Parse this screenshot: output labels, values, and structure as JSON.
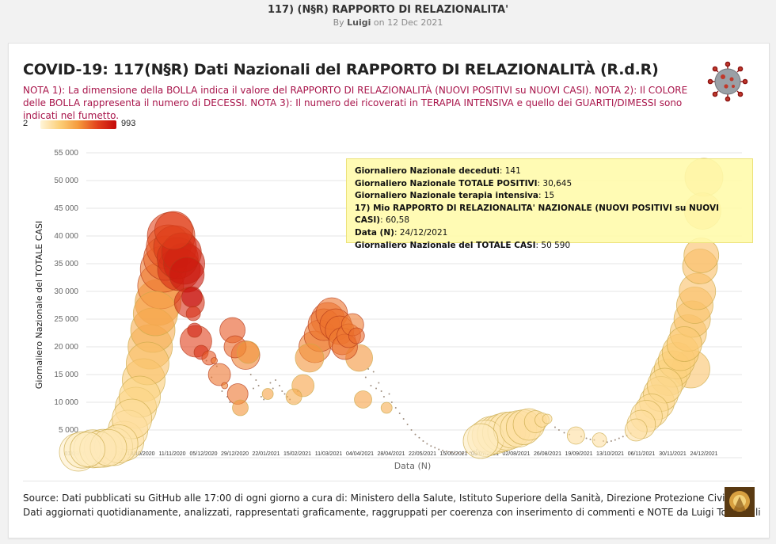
{
  "header": {
    "title": "117) (N§R) RAPPORTO DI RELAZIONALITA'",
    "by_prefix": "By",
    "author": "Luigi",
    "date_text": "on 12 Dec 2021"
  },
  "card": {
    "title": "COVID-19: 117(N§R) Dati Nazionali del RAPPORTO DI RELAZIONALITÀ (R.d.R)",
    "notes": "NOTA 1): La dimensione della BOLLA indica il valore del RAPPORTO DI RELAZIONALITÀ (NUOVI POSITIVI su NUOVI CASI). NOTA 2): Il COLORE delle BOLLA rappresenta il numero di DECESSI. NOTA 3): Il numero dei ricoverati in TERAPIA INTENSIVA e quello dei GUARITI/DIMESSI sono indicati nel fumetto.",
    "source_line1": "Source: Dati pubblicati su GitHub alle 17:00 di ogni giorno a cura di: Ministero della Salute, Istituto Superiore della Sanità, Direzione Protezione Civile",
    "source_line2": "Dati aggiornati quotidianamente, analizzati, rappresentati graficamente, raggruppati per coerenza con inserimento di commenti e NOTE da Luigi Tomaselli"
  },
  "colors": {
    "low": "#fff5d9",
    "high": "#c40a0a",
    "note_text": "#a8144a",
    "tooltip_bg": "#fffaaa"
  },
  "legend": {
    "min_label": "2",
    "max_label": "993"
  },
  "tooltip": {
    "rows": [
      {
        "label": "Giornaliero Nazionale deceduti",
        "value": ": 141"
      },
      {
        "label": "Giornaliero Nazionale TOTALE POSITIVI",
        "value": ": 30,645"
      },
      {
        "label": "Giornaliero Nazionale terapia intensiva",
        "value": ": 15"
      },
      {
        "label": "17) Mio RAPPORTO DI RELAZIONALITA' NAZIONALE (NUOVI POSITIVI su NUOVI CASI)",
        "value": ": 60,58"
      },
      {
        "label": "Data (N)",
        "value": ": 24/12/2021"
      },
      {
        "label": "Giornaliero Nazionale del TOTALE CASI",
        "value": ": 50 590"
      }
    ]
  },
  "chart_data": {
    "type": "scatter",
    "xlabel": "Data (N)",
    "ylabel": "Giornaliero Nazionale del TOTALE CASI",
    "ylim": [
      0,
      55000
    ],
    "yticks": [
      5000,
      10000,
      15000,
      20000,
      25000,
      30000,
      35000,
      40000,
      45000,
      50000,
      55000
    ],
    "ytick_labels": [
      "5 000",
      "10 000",
      "15 000",
      "20 000",
      "25 000",
      "30 000",
      "35 000",
      "40 000",
      "45 000",
      "50 000",
      "55 000"
    ],
    "xtick_labels": [
      "01/09/2020",
      "24/09/2020",
      "18/10/2020",
      "11/11/2020",
      "05/12/2020",
      "29/12/2020",
      "22/01/2021",
      "15/02/2021",
      "11/03/2021",
      "04/04/2021",
      "28/04/2021",
      "22/05/2021",
      "15/06/2021",
      "09/07/2021",
      "02/08/2021",
      "26/08/2021",
      "19/09/2021",
      "13/10/2021",
      "06/11/2021",
      "30/11/2021",
      "24/12/2021"
    ],
    "size_encodes": "RAPPORTO DI RELAZIONALITA' (NUOVI POSITIVI su NUOVI CASI)",
    "color_encodes": "DECESSI",
    "color_range": [
      2,
      993
    ],
    "points": [
      {
        "x": "2020-09-01",
        "y": 1000,
        "r": 24,
        "c": 5
      },
      {
        "x": "2020-09-04",
        "y": 1400,
        "r": 23,
        "c": 8
      },
      {
        "x": "2020-09-08",
        "y": 1500,
        "r": 22,
        "c": 10
      },
      {
        "x": "2020-09-12",
        "y": 1600,
        "r": 24,
        "c": 12
      },
      {
        "x": "2020-09-16",
        "y": 1500,
        "r": 23,
        "c": 14
      },
      {
        "x": "2020-09-20",
        "y": 1700,
        "r": 24,
        "c": 16
      },
      {
        "x": "2020-09-24",
        "y": 1800,
        "r": 23,
        "c": 18
      },
      {
        "x": "2020-09-28",
        "y": 2000,
        "r": 24,
        "c": 20
      },
      {
        "x": "2020-10-02",
        "y": 2500,
        "r": 24,
        "c": 22
      },
      {
        "x": "2020-10-06",
        "y": 3000,
        "r": 25,
        "c": 25
      },
      {
        "x": "2020-10-09",
        "y": 5000,
        "r": 25,
        "c": 30
      },
      {
        "x": "2020-10-12",
        "y": 7000,
        "r": 25,
        "c": 40
      },
      {
        "x": "2020-10-15",
        "y": 9000,
        "r": 26,
        "c": 50
      },
      {
        "x": "2020-10-18",
        "y": 11000,
        "r": 26,
        "c": 70
      },
      {
        "x": "2020-10-21",
        "y": 14000,
        "r": 27,
        "c": 90
      },
      {
        "x": "2020-10-24",
        "y": 17000,
        "r": 27,
        "c": 130
      },
      {
        "x": "2020-10-26",
        "y": 20000,
        "r": 28,
        "c": 160
      },
      {
        "x": "2020-10-28",
        "y": 23000,
        "r": 28,
        "c": 200
      },
      {
        "x": "2020-10-30",
        "y": 26000,
        "r": 28,
        "c": 240
      },
      {
        "x": "2020-11-01",
        "y": 28000,
        "r": 29,
        "c": 280
      },
      {
        "x": "2020-11-03",
        "y": 31000,
        "r": 29,
        "c": 330
      },
      {
        "x": "2020-11-05",
        "y": 34000,
        "r": 29,
        "c": 400
      },
      {
        "x": "2020-11-07",
        "y": 36000,
        "r": 28,
        "c": 450
      },
      {
        "x": "2020-11-09",
        "y": 38000,
        "r": 28,
        "c": 520
      },
      {
        "x": "2020-11-11",
        "y": 40000,
        "r": 30,
        "c": 580
      },
      {
        "x": "2020-11-13",
        "y": 41000,
        "r": 24,
        "c": 600
      },
      {
        "x": "2020-11-14",
        "y": 38000,
        "r": 27,
        "c": 640
      },
      {
        "x": "2020-11-16",
        "y": 36000,
        "r": 26,
        "c": 700
      },
      {
        "x": "2020-11-17",
        "y": 34000,
        "r": 27,
        "c": 730
      },
      {
        "x": "2020-11-19",
        "y": 37000,
        "r": 25,
        "c": 780
      },
      {
        "x": "2020-11-21",
        "y": 35000,
        "r": 26,
        "c": 830
      },
      {
        "x": "2020-11-23",
        "y": 33000,
        "r": 22,
        "c": 900
      },
      {
        "x": "2020-11-25",
        "y": 28000,
        "r": 19,
        "c": 720
      },
      {
        "x": "2020-11-27",
        "y": 29000,
        "r": 13,
        "c": 993
      },
      {
        "x": "2020-11-28",
        "y": 26000,
        "r": 9,
        "c": 700
      },
      {
        "x": "2020-11-29",
        "y": 23000,
        "r": 9,
        "c": 800
      },
      {
        "x": "2020-11-30",
        "y": 21000,
        "r": 20,
        "c": 600
      },
      {
        "x": "2020-12-04",
        "y": 19000,
        "r": 9,
        "c": 700
      },
      {
        "x": "2020-12-10",
        "y": 18000,
        "r": 9,
        "c": 500
      },
      {
        "x": "2020-12-14",
        "y": 17500,
        "r": 4,
        "c": 400
      },
      {
        "x": "2020-12-18",
        "y": 15000,
        "r": 14,
        "c": 400
      },
      {
        "x": "2020-12-22",
        "y": 13000,
        "r": 4,
        "c": 350
      },
      {
        "x": "2020-12-28",
        "y": 23000,
        "r": 16,
        "c": 500
      },
      {
        "x": "2020-12-30",
        "y": 20000,
        "r": 14,
        "c": 450
      },
      {
        "x": "2021-01-01",
        "y": 11500,
        "r": 13,
        "c": 400
      },
      {
        "x": "2021-01-03",
        "y": 9000,
        "r": 10,
        "c": 300
      },
      {
        "x": "2021-01-07",
        "y": 18500,
        "r": 18,
        "c": 350
      },
      {
        "x": "2021-01-09",
        "y": 19000,
        "r": 14,
        "c": 300
      },
      {
        "x": "2021-01-24",
        "y": 11500,
        "r": 7,
        "c": 250
      },
      {
        "x": "2021-02-13",
        "y": 11000,
        "r": 10,
        "c": 200
      },
      {
        "x": "2021-02-20",
        "y": 13000,
        "r": 14,
        "c": 250
      },
      {
        "x": "2021-02-25",
        "y": 18000,
        "r": 18,
        "c": 300
      },
      {
        "x": "2021-03-01",
        "y": 20000,
        "r": 20,
        "c": 350
      },
      {
        "x": "2021-03-05",
        "y": 22000,
        "r": 20,
        "c": 380
      },
      {
        "x": "2021-03-08",
        "y": 24000,
        "r": 20,
        "c": 400
      },
      {
        "x": "2021-03-11",
        "y": 25000,
        "r": 21,
        "c": 420
      },
      {
        "x": "2021-03-14",
        "y": 26000,
        "r": 20,
        "c": 400
      },
      {
        "x": "2021-03-17",
        "y": 24000,
        "r": 20,
        "c": 420
      },
      {
        "x": "2021-03-20",
        "y": 23000,
        "r": 18,
        "c": 400
      },
      {
        "x": "2021-03-22",
        "y": 21000,
        "r": 17,
        "c": 380
      },
      {
        "x": "2021-03-24",
        "y": 20000,
        "r": 16,
        "c": 420
      },
      {
        "x": "2021-03-27",
        "y": 22000,
        "r": 15,
        "c": 400
      },
      {
        "x": "2021-03-30",
        "y": 24000,
        "r": 14,
        "c": 380
      },
      {
        "x": "2021-04-02",
        "y": 22000,
        "r": 10,
        "c": 450
      },
      {
        "x": "2021-04-04",
        "y": 18000,
        "r": 17,
        "c": 300
      },
      {
        "x": "2021-04-07",
        "y": 10500,
        "r": 11,
        "c": 250
      },
      {
        "x": "2021-04-25",
        "y": 9000,
        "r": 7,
        "c": 200
      },
      {
        "x": "2021-07-06",
        "y": 3000,
        "r": 22,
        "c": 10
      },
      {
        "x": "2021-07-10",
        "y": 3500,
        "r": 23,
        "c": 12
      },
      {
        "x": "2021-07-14",
        "y": 4000,
        "r": 24,
        "c": 14
      },
      {
        "x": "2021-07-18",
        "y": 4200,
        "r": 24,
        "c": 16
      },
      {
        "x": "2021-07-22",
        "y": 4500,
        "r": 24,
        "c": 18
      },
      {
        "x": "2021-07-26",
        "y": 4800,
        "r": 24,
        "c": 20
      },
      {
        "x": "2021-07-30",
        "y": 5000,
        "r": 23,
        "c": 22
      },
      {
        "x": "2021-08-04",
        "y": 5200,
        "r": 23,
        "c": 25
      },
      {
        "x": "2021-08-08",
        "y": 5500,
        "r": 22,
        "c": 30
      },
      {
        "x": "2021-08-12",
        "y": 6000,
        "r": 20,
        "c": 35
      },
      {
        "x": "2021-08-17",
        "y": 6500,
        "r": 14,
        "c": 40
      },
      {
        "x": "2021-08-22",
        "y": 6800,
        "r": 9,
        "c": 40
      },
      {
        "x": "2021-08-26",
        "y": 7000,
        "r": 6,
        "c": 40
      },
      {
        "x": "2021-09-17",
        "y": 4000,
        "r": 11,
        "c": 35
      },
      {
        "x": "2021-10-05",
        "y": 3200,
        "r": 9,
        "c": 30
      },
      {
        "x": "2021-11-02",
        "y": 5000,
        "r": 14,
        "c": 30
      },
      {
        "x": "2021-11-06",
        "y": 6000,
        "r": 18,
        "c": 35
      },
      {
        "x": "2021-11-10",
        "y": 7500,
        "r": 20,
        "c": 40
      },
      {
        "x": "2021-11-14",
        "y": 8500,
        "r": 21,
        "c": 45
      },
      {
        "x": "2021-11-18",
        "y": 10000,
        "r": 22,
        "c": 50
      },
      {
        "x": "2021-11-21",
        "y": 11500,
        "r": 22,
        "c": 55
      },
      {
        "x": "2021-11-24",
        "y": 13000,
        "r": 22,
        "c": 60
      },
      {
        "x": "2021-11-27",
        "y": 14500,
        "r": 23,
        "c": 65
      },
      {
        "x": "2021-11-30",
        "y": 16000,
        "r": 23,
        "c": 70
      },
      {
        "x": "2021-12-03",
        "y": 17500,
        "r": 23,
        "c": 80
      },
      {
        "x": "2021-12-06",
        "y": 19000,
        "r": 23,
        "c": 90
      },
      {
        "x": "2021-12-09",
        "y": 20500,
        "r": 22,
        "c": 100
      },
      {
        "x": "2021-12-12",
        "y": 22500,
        "r": 23,
        "c": 110
      },
      {
        "x": "2021-12-15",
        "y": 25000,
        "r": 23,
        "c": 120
      },
      {
        "x": "2021-12-17",
        "y": 27500,
        "r": 23,
        "c": 125
      },
      {
        "x": "2021-12-19",
        "y": 30000,
        "r": 23,
        "c": 130
      },
      {
        "x": "2021-12-21",
        "y": 34500,
        "r": 22,
        "c": 135
      },
      {
        "x": "2021-12-22",
        "y": 36500,
        "r": 22,
        "c": 138
      },
      {
        "x": "2021-12-23",
        "y": 44500,
        "r": 23,
        "c": 140
      },
      {
        "x": "2021-12-24",
        "y": 50590,
        "r": 24,
        "c": 141
      },
      {
        "x": "2021-12-14",
        "y": 16000,
        "r": 24,
        "c": 120
      }
    ],
    "small_dots": [
      [
        "2020-12-08",
        17500
      ],
      [
        "2020-12-12",
        14500
      ],
      [
        "2020-12-16",
        16500
      ],
      [
        "2020-12-20",
        12000
      ],
      [
        "2020-12-24",
        11000
      ],
      [
        "2020-12-26",
        10000
      ],
      [
        "2021-01-11",
        15000
      ],
      [
        "2021-01-13",
        12500
      ],
      [
        "2021-01-15",
        14000
      ],
      [
        "2021-01-17",
        13000
      ],
      [
        "2021-01-19",
        11000
      ],
      [
        "2021-01-21",
        10500
      ],
      [
        "2021-01-26",
        13500
      ],
      [
        "2021-01-28",
        12500
      ],
      [
        "2021-01-30",
        14000
      ],
      [
        "2021-02-02",
        13000
      ],
      [
        "2021-02-04",
        12000
      ],
      [
        "2021-02-06",
        11500
      ],
      [
        "2021-02-08",
        11000
      ],
      [
        "2021-02-10",
        10500
      ],
      [
        "2021-02-16",
        12000
      ],
      [
        "2021-04-09",
        14500
      ],
      [
        "2021-04-11",
        16000
      ],
      [
        "2021-04-13",
        13000
      ],
      [
        "2021-04-15",
        15500
      ],
      [
        "2021-04-17",
        12500
      ],
      [
        "2021-04-19",
        13500
      ],
      [
        "2021-04-21",
        12000
      ],
      [
        "2021-04-23",
        11000
      ],
      [
        "2021-04-27",
        11500
      ],
      [
        "2021-04-29",
        10000
      ],
      [
        "2021-05-02",
        9000
      ],
      [
        "2021-05-05",
        8000
      ],
      [
        "2021-05-08",
        7000
      ],
      [
        "2021-05-11",
        6000
      ],
      [
        "2021-05-14",
        5000
      ],
      [
        "2021-05-17",
        4200
      ],
      [
        "2021-05-20",
        3600
      ],
      [
        "2021-05-23",
        3000
      ],
      [
        "2021-05-26",
        2500
      ],
      [
        "2021-05-29",
        2100
      ],
      [
        "2021-06-01",
        1800
      ],
      [
        "2021-06-04",
        1500
      ],
      [
        "2021-06-07",
        1300
      ],
      [
        "2021-06-10",
        1100
      ],
      [
        "2021-06-13",
        1000
      ],
      [
        "2021-06-16",
        900
      ],
      [
        "2021-06-19",
        850
      ],
      [
        "2021-06-22",
        800
      ],
      [
        "2021-06-25",
        900
      ],
      [
        "2021-06-28",
        1000
      ],
      [
        "2021-07-01",
        1200
      ],
      [
        "2021-07-03",
        1400
      ],
      [
        "2021-09-01",
        5500
      ],
      [
        "2021-09-04",
        5000
      ],
      [
        "2021-09-08",
        4500
      ],
      [
        "2021-09-12",
        4200
      ],
      [
        "2021-09-21",
        3800
      ],
      [
        "2021-09-25",
        3500
      ],
      [
        "2021-09-28",
        3300
      ],
      [
        "2021-10-01",
        3200
      ],
      [
        "2021-10-08",
        3000
      ],
      [
        "2021-10-11",
        2800
      ],
      [
        "2021-10-14",
        3000
      ],
      [
        "2021-10-17",
        3200
      ],
      [
        "2021-10-20",
        3500
      ],
      [
        "2021-10-23",
        3800
      ],
      [
        "2021-10-26",
        4000
      ],
      [
        "2021-10-29",
        4400
      ]
    ]
  }
}
